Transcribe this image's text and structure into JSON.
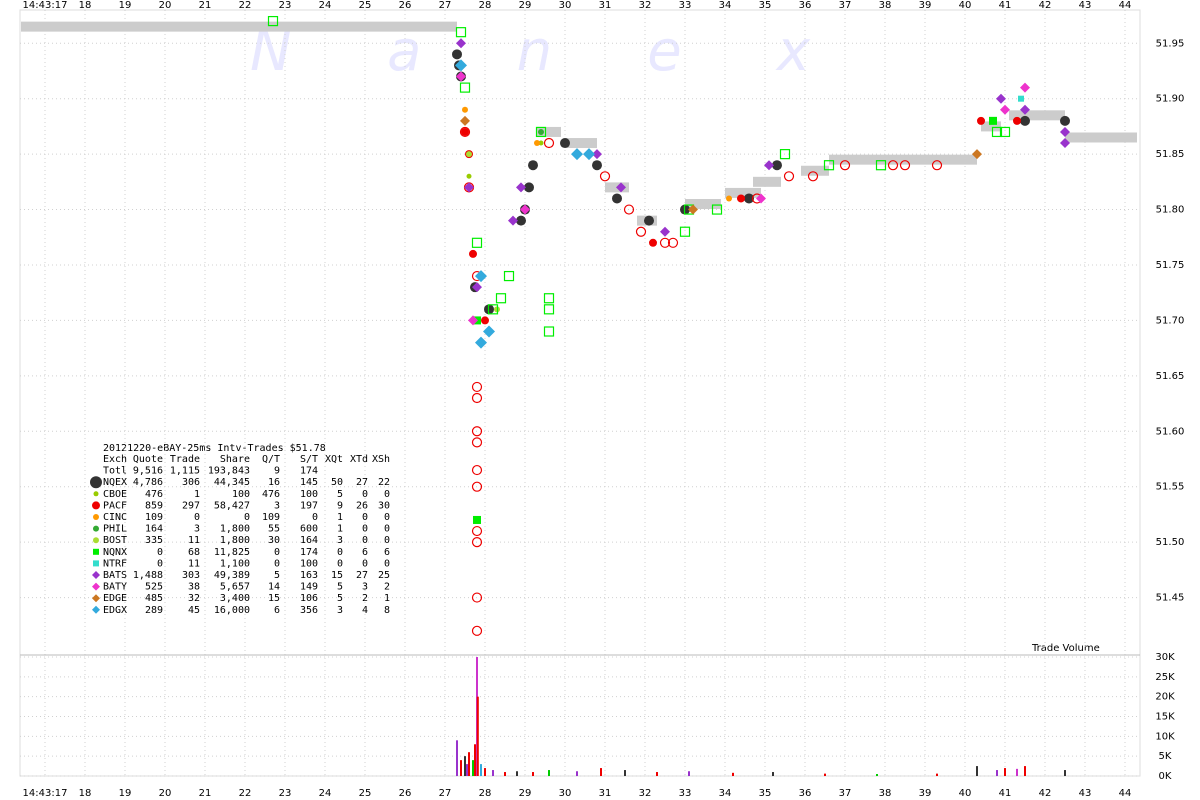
{
  "chart_data": {
    "type": "scatter",
    "title": "20121220-eBAY-25ms Intv-Trades $51.78",
    "watermark": "N a n e x",
    "volume_label": "Trade Volume",
    "xlim": [
      16.375,
      44.375
    ],
    "xticks": [
      {
        "value": 17,
        "label": "14:43:17"
      },
      18,
      19,
      20,
      21,
      22,
      23,
      24,
      25,
      26,
      27,
      28,
      29,
      30,
      31,
      32,
      33,
      34,
      35,
      36,
      37,
      38,
      39,
      40,
      41,
      42,
      43,
      44
    ],
    "ylim": [
      51.4,
      51.98
    ],
    "yticks": [
      {
        "value": 51.45,
        "label": "51.45"
      },
      {
        "value": 51.5,
        "label": "51.50"
      },
      {
        "value": 51.55,
        "label": "51.55"
      },
      {
        "value": 51.6,
        "label": "51.60"
      },
      {
        "value": 51.65,
        "label": "51.65"
      },
      {
        "value": 51.7,
        "label": "51.70"
      },
      {
        "value": 51.75,
        "label": "51.75"
      },
      {
        "value": 51.8,
        "label": "51.80"
      },
      {
        "value": 51.85,
        "label": "51.85"
      },
      {
        "value": 51.9,
        "label": "51.90"
      },
      {
        "value": 51.95,
        "label": "51.95"
      }
    ],
    "grid": true,
    "band": {
      "color": "#cccccc",
      "x": [
        [
          16.4,
          27.3
        ],
        [
          29.3,
          29.9
        ],
        [
          30.0,
          30.8
        ],
        [
          31.0,
          31.6
        ],
        [
          31.8,
          32.3
        ],
        [
          33.0,
          33.9
        ],
        [
          34.0,
          34.9
        ],
        [
          34.7,
          35.4
        ],
        [
          35.9,
          36.6
        ],
        [
          36.6,
          40.3
        ],
        [
          40.4,
          40.9
        ],
        [
          41.1,
          42.5
        ],
        [
          42.5,
          44.3
        ]
      ],
      "values": [
        51.965,
        51.87,
        51.86,
        51.82,
        51.79,
        51.805,
        51.815,
        51.825,
        51.835,
        51.845,
        51.875,
        51.885,
        51.865
      ]
    },
    "table": {
      "header": [
        "Exch",
        "Quote",
        "Trade",
        "Share",
        "Q/T",
        "S/T",
        "XQt",
        "XTd",
        "XSh"
      ],
      "total": [
        "Totl",
        "9,516",
        "1,115",
        "193,843",
        "9",
        "174"
      ]
    },
    "series": [
      {
        "name": "NQEX",
        "color": "#333333",
        "marker": "circle",
        "size": 5,
        "stats": [
          "4,786",
          "306",
          "44,345",
          "16",
          "145",
          "50",
          "27",
          "22"
        ],
        "x": [
          27.3,
          27.35,
          27.4,
          27.75,
          28.1,
          28.9,
          29.0,
          29.1,
          29.2,
          30.0,
          30.8,
          31.3,
          32.1,
          33.0,
          34.6,
          35.3,
          41.5,
          42.5
        ],
        "values": [
          51.94,
          51.93,
          51.92,
          51.73,
          51.71,
          51.79,
          51.8,
          51.82,
          51.84,
          51.86,
          51.84,
          51.81,
          51.79,
          51.8,
          51.81,
          51.84,
          51.88,
          51.88
        ]
      },
      {
        "name": "CBOE",
        "color": "#99cc00",
        "marker": "circle",
        "size": 2.5,
        "stats": [
          "476",
          "1",
          "100",
          "476",
          "100",
          "5",
          "0",
          "0"
        ],
        "x": [
          27.6,
          29.4
        ],
        "values": [
          51.83,
          51.86
        ]
      },
      {
        "name": "PACF",
        "color": "#ee0000",
        "marker": "circle",
        "size": 4,
        "stats": [
          "859",
          "297",
          "58,427",
          "3",
          "197",
          "9",
          "26",
          "30"
        ],
        "x": [
          27.5,
          27.6,
          27.7,
          28.0,
          32.2,
          34.4,
          40.4,
          41.3
        ],
        "values": [
          51.87,
          51.85,
          51.76,
          51.7,
          51.77,
          51.81,
          51.88,
          51.88
        ],
        "open": {
          "x": [
            27.5,
            27.6,
            27.8,
            27.8,
            27.8,
            27.8,
            27.8,
            27.8,
            27.8,
            27.8,
            27.8,
            27.8,
            27.8,
            29.6,
            31.0,
            31.6,
            31.9,
            32.5,
            32.7,
            34.8,
            35.6,
            36.2,
            37.0,
            38.2,
            38.5,
            39.3
          ],
          "values": [
            51.87,
            51.82,
            51.74,
            51.64,
            51.63,
            51.6,
            51.59,
            51.565,
            51.55,
            51.51,
            51.5,
            51.45,
            51.42,
            51.86,
            51.83,
            51.8,
            51.78,
            51.77,
            51.77,
            51.81,
            51.83,
            51.83,
            51.84,
            51.84,
            51.84,
            51.84
          ]
        }
      },
      {
        "name": "CINC",
        "color": "#ff9900",
        "marker": "circle",
        "size": 3,
        "stats": [
          "109",
          "0",
          "0",
          "109",
          "0",
          "1",
          "0",
          "0"
        ],
        "x": [
          27.5,
          29.3,
          34.1,
          40.3
        ],
        "values": [
          51.89,
          51.86,
          51.81,
          51.85
        ]
      },
      {
        "name": "PHIL",
        "color": "#33aa33",
        "marker": "circle",
        "size": 3,
        "stats": [
          "164",
          "3",
          "1,800",
          "55",
          "600",
          "1",
          "0",
          "0"
        ],
        "x": [
          27.7,
          29.4
        ],
        "values": [
          51.7,
          51.87
        ]
      },
      {
        "name": "BOST",
        "color": "#aadd33",
        "marker": "circle",
        "size": 3,
        "stats": [
          "335",
          "11",
          "1,800",
          "30",
          "164",
          "3",
          "0",
          "0"
        ],
        "x": [
          27.6,
          28.3
        ],
        "values": [
          51.85,
          51.71
        ]
      },
      {
        "name": "NQNX",
        "color": "#00ee00",
        "marker": "square",
        "size": 4,
        "stats": [
          "0",
          "68",
          "11,825",
          "0",
          "174",
          "0",
          "6",
          "6"
        ],
        "x": [
          27.8,
          27.8,
          40.7
        ],
        "values": [
          51.7,
          51.52,
          51.88
        ],
        "open": {
          "x": [
            22.7,
            27.4,
            27.5,
            27.8,
            28.2,
            28.4,
            28.6,
            29.4,
            29.6,
            29.6,
            29.6,
            33.0,
            33.1,
            33.8,
            35.5,
            36.6,
            37.9,
            40.8,
            41.0
          ],
          "values": [
            51.97,
            51.96,
            51.91,
            51.77,
            51.71,
            51.72,
            51.74,
            51.87,
            51.72,
            51.71,
            51.69,
            51.78,
            51.8,
            51.8,
            51.85,
            51.84,
            51.84,
            51.87,
            51.87
          ]
        }
      },
      {
        "name": "NTRF",
        "color": "#33ddcc",
        "marker": "square",
        "size": 3,
        "stats": [
          "0",
          "11",
          "1,100",
          "0",
          "100",
          "0",
          "0",
          "0"
        ],
        "x": [
          41.4
        ],
        "values": [
          51.9
        ]
      },
      {
        "name": "BATS",
        "color": "#9933cc",
        "marker": "diamond",
        "size": 4,
        "stats": [
          "1,488",
          "303",
          "49,389",
          "5",
          "163",
          "15",
          "27",
          "25"
        ],
        "x": [
          27.4,
          27.6,
          27.8,
          28.7,
          28.9,
          30.8,
          31.4,
          32.5,
          35.1,
          40.9,
          41.5,
          42.5,
          42.5
        ],
        "values": [
          51.95,
          51.82,
          51.73,
          51.79,
          51.82,
          51.85,
          51.82,
          51.78,
          51.84,
          51.9,
          51.89,
          51.87,
          51.86
        ]
      },
      {
        "name": "BATY",
        "color": "#ee33cc",
        "marker": "diamond",
        "size": 4,
        "stats": [
          "525",
          "38",
          "5,657",
          "14",
          "149",
          "5",
          "3",
          "2"
        ],
        "x": [
          27.4,
          27.7,
          29.0,
          34.9,
          41.0,
          41.5
        ],
        "values": [
          51.92,
          51.7,
          51.8,
          51.81,
          51.89,
          51.91
        ]
      },
      {
        "name": "EDGE",
        "color": "#cc7722",
        "marker": "diamond",
        "size": 4,
        "stats": [
          "485",
          "32",
          "3,400",
          "15",
          "106",
          "5",
          "2",
          "1"
        ],
        "x": [
          27.5,
          33.2,
          40.3
        ],
        "values": [
          51.88,
          51.8,
          51.85
        ]
      },
      {
        "name": "EDGX",
        "color": "#33aadd",
        "marker": "diamond",
        "size": 5,
        "stats": [
          "289",
          "45",
          "16,000",
          "6",
          "356",
          "3",
          "4",
          "8"
        ],
        "x": [
          27.4,
          27.9,
          27.9,
          28.1,
          30.3,
          30.6
        ],
        "values": [
          51.93,
          51.74,
          51.68,
          51.69,
          51.85,
          51.85
        ]
      }
    ],
    "volume": {
      "ylim": [
        0,
        30000
      ],
      "yticks": [
        {
          "value": 0,
          "label": "0K"
        },
        {
          "value": 5000,
          "label": "5K"
        },
        {
          "value": 10000,
          "label": "10K"
        },
        {
          "value": 15000,
          "label": "15K"
        },
        {
          "value": 20000,
          "label": "20K"
        },
        {
          "value": 25000,
          "label": "25K"
        },
        {
          "value": 30000,
          "label": "30K"
        }
      ],
      "x": [
        27.3,
        27.4,
        27.5,
        27.55,
        27.6,
        27.7,
        27.75,
        27.8,
        27.82,
        27.9,
        28.0,
        28.2,
        28.5,
        28.8,
        29.2,
        29.6,
        30.3,
        30.9,
        31.5,
        32.3,
        33.1,
        34.2,
        35.2,
        36.5,
        37.8,
        39.3,
        40.3,
        40.8,
        41.0,
        41.3,
        41.5,
        42.5
      ],
      "values": [
        9000,
        4000,
        5000,
        3000,
        6000,
        4000,
        8000,
        30000,
        20000,
        3000,
        2000,
        1500,
        1000,
        1200,
        1000,
        1500,
        1200,
        2000,
        1500,
        1000,
        1200,
        800,
        1000,
        600,
        500,
        600,
        2500,
        1500,
        2000,
        1800,
        2500,
        1500
      ],
      "colors": [
        "#9933cc",
        "#ee0000",
        "#333333",
        "#9933cc",
        "#ee0000",
        "#00cc00",
        "#ee0000",
        "#cc33cc",
        "#ee0000",
        "#33aadd",
        "#ee0000",
        "#9933cc",
        "#ee0000",
        "#333333",
        "#ee0000",
        "#00cc00",
        "#9933cc",
        "#ee0000",
        "#333333",
        "#ee0000",
        "#9933cc",
        "#ee0000",
        "#333333",
        "#ee0000",
        "#00cc00",
        "#ee0000",
        "#333333",
        "#9933cc",
        "#ee0000",
        "#cc33cc",
        "#ee0000",
        "#333333"
      ]
    }
  }
}
